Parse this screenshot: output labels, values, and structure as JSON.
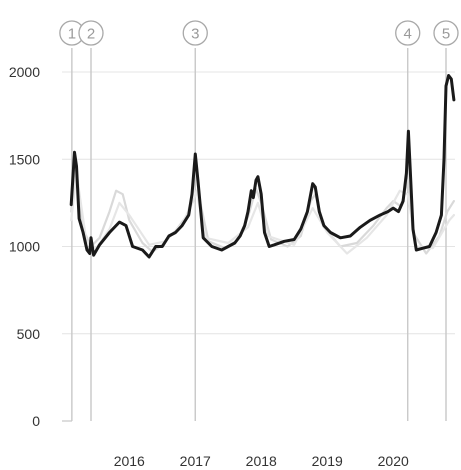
{
  "chart_data": {
    "type": "line",
    "title": "",
    "xlabel": "",
    "ylabel": "",
    "ylim": [
      0,
      2000
    ],
    "xlim": [
      2015.1,
      2020.95
    ],
    "y_ticks": [
      "0",
      "500",
      "1000",
      "1500",
      "2000"
    ],
    "x_ticks": [
      {
        "label": "2016",
        "value": 2016.0
      },
      {
        "label": "2017",
        "value": 2017.0
      },
      {
        "label": "2018",
        "value": 2018.0
      },
      {
        "label": "2019",
        "value": 2019.0
      },
      {
        "label": "2020",
        "value": 2020.0
      }
    ],
    "grid": "horizontal",
    "markers": [
      {
        "label": "1",
        "x": 2015.13
      },
      {
        "label": "2",
        "x": 2015.42
      },
      {
        "label": "3",
        "x": 2017.0
      },
      {
        "label": "4",
        "x": 2020.22
      },
      {
        "label": "5",
        "x": 2020.8
      }
    ],
    "series": [
      {
        "role": "main",
        "color": "#1a1a1a",
        "points": [
          [
            2015.12,
            1240
          ],
          [
            2015.17,
            1540
          ],
          [
            2015.2,
            1460
          ],
          [
            2015.24,
            1160
          ],
          [
            2015.3,
            1080
          ],
          [
            2015.36,
            980
          ],
          [
            2015.4,
            960
          ],
          [
            2015.42,
            1050
          ],
          [
            2015.46,
            950
          ],
          [
            2015.55,
            1010
          ],
          [
            2015.7,
            1080
          ],
          [
            2015.85,
            1140
          ],
          [
            2015.95,
            1120
          ],
          [
            2016.05,
            1000
          ],
          [
            2016.2,
            980
          ],
          [
            2016.3,
            940
          ],
          [
            2016.4,
            1000
          ],
          [
            2016.5,
            1000
          ],
          [
            2016.6,
            1060
          ],
          [
            2016.7,
            1080
          ],
          [
            2016.8,
            1120
          ],
          [
            2016.9,
            1180
          ],
          [
            2016.95,
            1300
          ],
          [
            2017.0,
            1530
          ],
          [
            2017.04,
            1380
          ],
          [
            2017.12,
            1050
          ],
          [
            2017.25,
            1000
          ],
          [
            2017.4,
            980
          ],
          [
            2017.5,
            1000
          ],
          [
            2017.6,
            1020
          ],
          [
            2017.68,
            1060
          ],
          [
            2017.75,
            1120
          ],
          [
            2017.8,
            1200
          ],
          [
            2017.85,
            1320
          ],
          [
            2017.88,
            1280
          ],
          [
            2017.92,
            1380
          ],
          [
            2017.95,
            1400
          ],
          [
            2018.0,
            1300
          ],
          [
            2018.05,
            1080
          ],
          [
            2018.12,
            1000
          ],
          [
            2018.2,
            1010
          ],
          [
            2018.35,
            1030
          ],
          [
            2018.5,
            1040
          ],
          [
            2018.6,
            1100
          ],
          [
            2018.7,
            1200
          ],
          [
            2018.75,
            1300
          ],
          [
            2018.78,
            1360
          ],
          [
            2018.82,
            1340
          ],
          [
            2018.88,
            1200
          ],
          [
            2018.95,
            1120
          ],
          [
            2019.05,
            1080
          ],
          [
            2019.2,
            1050
          ],
          [
            2019.35,
            1060
          ],
          [
            2019.5,
            1110
          ],
          [
            2019.65,
            1150
          ],
          [
            2019.8,
            1180
          ],
          [
            2019.92,
            1200
          ],
          [
            2020.0,
            1220
          ],
          [
            2020.08,
            1200
          ],
          [
            2020.15,
            1260
          ],
          [
            2020.2,
            1420
          ],
          [
            2020.23,
            1660
          ],
          [
            2020.26,
            1420
          ],
          [
            2020.3,
            1100
          ],
          [
            2020.35,
            980
          ],
          [
            2020.45,
            990
          ],
          [
            2020.55,
            1000
          ],
          [
            2020.65,
            1080
          ],
          [
            2020.73,
            1180
          ],
          [
            2020.77,
            1500
          ],
          [
            2020.8,
            1920
          ],
          [
            2020.84,
            1980
          ],
          [
            2020.88,
            1960
          ],
          [
            2020.92,
            1840
          ]
        ]
      },
      {
        "role": "background",
        "color": "#d9d9d9",
        "points": [
          [
            2015.12,
            1200
          ],
          [
            2015.18,
            1500
          ],
          [
            2015.3,
            1100
          ],
          [
            2015.42,
            1000
          ],
          [
            2015.55,
            1050
          ],
          [
            2015.7,
            1200
          ],
          [
            2015.8,
            1320
          ],
          [
            2015.9,
            1300
          ],
          [
            2016.0,
            1150
          ],
          [
            2016.2,
            1020
          ],
          [
            2016.35,
            970
          ],
          [
            2016.5,
            1010
          ],
          [
            2016.7,
            1090
          ],
          [
            2016.88,
            1180
          ],
          [
            2016.96,
            1300
          ],
          [
            2017.0,
            1480
          ],
          [
            2017.06,
            1280
          ],
          [
            2017.2,
            1030
          ],
          [
            2017.45,
            990
          ],
          [
            2017.65,
            1040
          ],
          [
            2017.8,
            1170
          ],
          [
            2017.92,
            1330
          ],
          [
            2018.0,
            1250
          ],
          [
            2018.15,
            1040
          ],
          [
            2018.4,
            1000
          ],
          [
            2018.6,
            1060
          ],
          [
            2018.75,
            1260
          ],
          [
            2018.82,
            1300
          ],
          [
            2018.95,
            1110
          ],
          [
            2019.2,
            1000
          ],
          [
            2019.45,
            1020
          ],
          [
            2019.7,
            1120
          ],
          [
            2019.9,
            1220
          ],
          [
            2020.0,
            1260
          ],
          [
            2020.12,
            1230
          ],
          [
            2020.22,
            1380
          ],
          [
            2020.3,
            1080
          ],
          [
            2020.5,
            960
          ],
          [
            2020.7,
            1060
          ],
          [
            2020.82,
            1200
          ],
          [
            2020.92,
            1260
          ]
        ]
      },
      {
        "role": "background",
        "color": "#e6e6e6",
        "points": [
          [
            2015.12,
            1150
          ],
          [
            2015.2,
            1420
          ],
          [
            2015.35,
            1030
          ],
          [
            2015.5,
            990
          ],
          [
            2015.7,
            1100
          ],
          [
            2015.85,
            1250
          ],
          [
            2016.0,
            1180
          ],
          [
            2016.3,
            1010
          ],
          [
            2016.55,
            1030
          ],
          [
            2016.8,
            1130
          ],
          [
            2016.97,
            1260
          ],
          [
            2017.02,
            1320
          ],
          [
            2017.15,
            1050
          ],
          [
            2017.5,
            1020
          ],
          [
            2017.8,
            1110
          ],
          [
            2017.95,
            1250
          ],
          [
            2018.1,
            1060
          ],
          [
            2018.5,
            1010
          ],
          [
            2018.78,
            1220
          ],
          [
            2019.0,
            1080
          ],
          [
            2019.3,
            960
          ],
          [
            2019.6,
            1050
          ],
          [
            2019.9,
            1180
          ],
          [
            2020.1,
            1320
          ],
          [
            2020.22,
            1300
          ],
          [
            2020.35,
            1000
          ],
          [
            2020.6,
            990
          ],
          [
            2020.85,
            1150
          ],
          [
            2020.92,
            1180
          ]
        ]
      }
    ]
  }
}
